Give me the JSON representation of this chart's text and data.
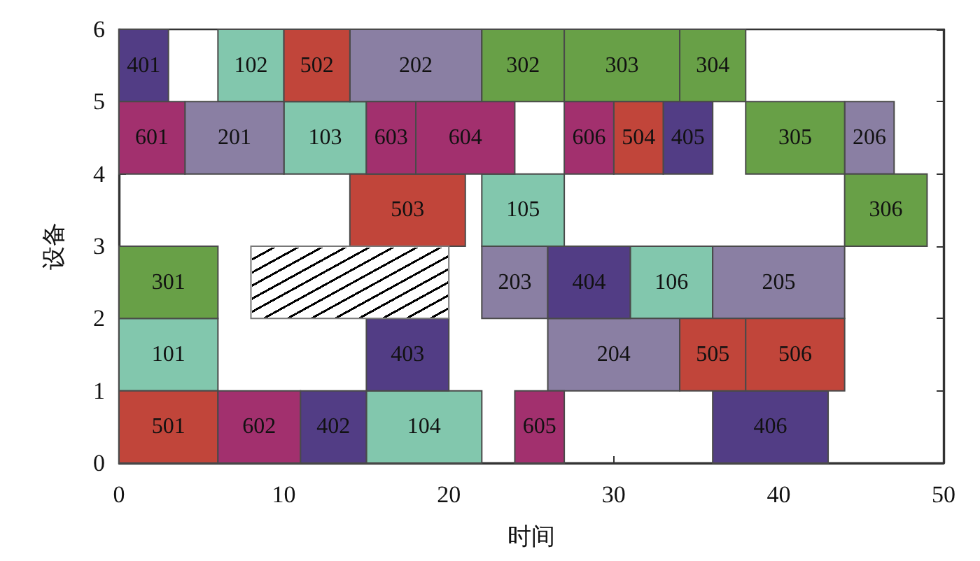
{
  "chart_data": {
    "type": "bar",
    "orientation": "horizontal",
    "xlabel": "时间",
    "ylabel": "设备",
    "xlim": [
      0,
      50
    ],
    "xticks": [
      0,
      10,
      20,
      30,
      40,
      50
    ],
    "ylim": [
      0,
      6
    ],
    "yticks": [
      0,
      1,
      2,
      3,
      4,
      5,
      6
    ],
    "series": [
      {
        "name": "101",
        "color": "#82c7ad",
        "x": [
          1.5
        ],
        "base": [
          0
        ],
        "values": [
          6
        ]
      },
      {
        "name": "102",
        "color": "#82c7ad",
        "x": [
          5.5
        ],
        "base": [
          6
        ],
        "values": [
          4
        ]
      },
      {
        "name": "103",
        "color": "#82c7ad",
        "x": [
          4.5
        ],
        "base": [
          10
        ],
        "values": [
          5
        ]
      },
      {
        "name": "104",
        "color": "#82c7ad",
        "x": [
          0.5
        ],
        "base": [
          15
        ],
        "values": [
          7
        ]
      },
      {
        "name": "105",
        "color": "#82c7ad",
        "x": [
          3.5
        ],
        "base": [
          22
        ],
        "values": [
          5
        ]
      },
      {
        "name": "106",
        "color": "#82c7ad",
        "x": [
          2.5
        ],
        "base": [
          31
        ],
        "values": [
          5
        ]
      },
      {
        "name": "201",
        "color": "#8a7fa3",
        "x": [
          4.5
        ],
        "base": [
          4
        ],
        "values": [
          6
        ]
      },
      {
        "name": "202",
        "color": "#8a7fa3",
        "x": [
          5.5
        ],
        "base": [
          14
        ],
        "values": [
          8
        ]
      },
      {
        "name": "203",
        "color": "#8a7fa3",
        "x": [
          2.5
        ],
        "base": [
          22
        ],
        "values": [
          4
        ]
      },
      {
        "name": "204",
        "color": "#8a7fa3",
        "x": [
          1.5
        ],
        "base": [
          26
        ],
        "values": [
          8
        ]
      },
      {
        "name": "205",
        "color": "#8a7fa3",
        "x": [
          2.5
        ],
        "base": [
          36
        ],
        "values": [
          8
        ]
      },
      {
        "name": "206",
        "color": "#8a7fa3",
        "x": [
          4.5
        ],
        "base": [
          44
        ],
        "values": [
          3
        ]
      },
      {
        "name": "301",
        "color": "#68a047",
        "x": [
          2.5
        ],
        "base": [
          0
        ],
        "values": [
          6
        ]
      },
      {
        "name": "302",
        "color": "#68a047",
        "x": [
          5.5
        ],
        "base": [
          22
        ],
        "values": [
          5
        ]
      },
      {
        "name": "303",
        "color": "#68a047",
        "x": [
          5.5
        ],
        "base": [
          27
        ],
        "values": [
          7
        ]
      },
      {
        "name": "304",
        "color": "#68a047",
        "x": [
          5.5
        ],
        "base": [
          34
        ],
        "values": [
          4
        ]
      },
      {
        "name": "305",
        "color": "#68a047",
        "x": [
          4.5
        ],
        "base": [
          38
        ],
        "values": [
          6
        ]
      },
      {
        "name": "306",
        "color": "#68a047",
        "x": [
          3.5
        ],
        "base": [
          44
        ],
        "values": [
          5
        ]
      },
      {
        "name": "401",
        "color": "#523d85",
        "x": [
          5.5
        ],
        "base": [
          0
        ],
        "values": [
          3
        ]
      },
      {
        "name": "402",
        "color": "#523d85",
        "x": [
          0.5
        ],
        "base": [
          11
        ],
        "values": [
          4
        ]
      },
      {
        "name": "403",
        "color": "#523d85",
        "x": [
          1.5
        ],
        "base": [
          15
        ],
        "values": [
          5
        ]
      },
      {
        "name": "404",
        "color": "#523d85",
        "x": [
          2.5
        ],
        "base": [
          26
        ],
        "values": [
          5
        ]
      },
      {
        "name": "405",
        "color": "#523d85",
        "x": [
          4.5
        ],
        "base": [
          33
        ],
        "values": [
          3
        ]
      },
      {
        "name": "406",
        "color": "#523d85",
        "x": [
          0.5
        ],
        "base": [
          36
        ],
        "values": [
          7
        ]
      },
      {
        "name": "501",
        "color": "#c1453a",
        "x": [
          0.5
        ],
        "base": [
          0
        ],
        "values": [
          6
        ]
      },
      {
        "name": "502",
        "color": "#c1453a",
        "x": [
          5.5
        ],
        "base": [
          10
        ],
        "values": [
          4
        ]
      },
      {
        "name": "503",
        "color": "#c1453a",
        "x": [
          3.5
        ],
        "base": [
          14
        ],
        "values": [
          7
        ]
      },
      {
        "name": "504",
        "color": "#c1453a",
        "x": [
          4.5
        ],
        "base": [
          30
        ],
        "values": [
          3
        ]
      },
      {
        "name": "505",
        "color": "#c1453a",
        "x": [
          1.5
        ],
        "base": [
          34
        ],
        "values": [
          4
        ]
      },
      {
        "name": "506",
        "color": "#c1453a",
        "x": [
          1.5
        ],
        "base": [
          38
        ],
        "values": [
          6
        ]
      },
      {
        "name": "601",
        "color": "#a2306e",
        "x": [
          4.5
        ],
        "base": [
          0
        ],
        "values": [
          4
        ]
      },
      {
        "name": "602",
        "color": "#a2306e",
        "x": [
          0.5
        ],
        "base": [
          6
        ],
        "values": [
          5
        ]
      },
      {
        "name": "603",
        "color": "#a2306e",
        "x": [
          4.5
        ],
        "base": [
          15
        ],
        "values": [
          3
        ]
      },
      {
        "name": "604",
        "color": "#a2306e",
        "x": [
          4.5
        ],
        "base": [
          18
        ],
        "values": [
          6
        ]
      },
      {
        "name": "605",
        "color": "#a2306e",
        "x": [
          0.5
        ],
        "base": [
          24
        ],
        "values": [
          3
        ]
      },
      {
        "name": "606",
        "color": "#a2306e",
        "x": [
          4.5
        ],
        "base": [
          27
        ],
        "values": [
          3
        ]
      },
      {
        "color": "#ffffff",
        "x": [
          2.5
        ],
        "base": [
          8
        ],
        "values": [
          12
        ]
      }
    ]
  }
}
